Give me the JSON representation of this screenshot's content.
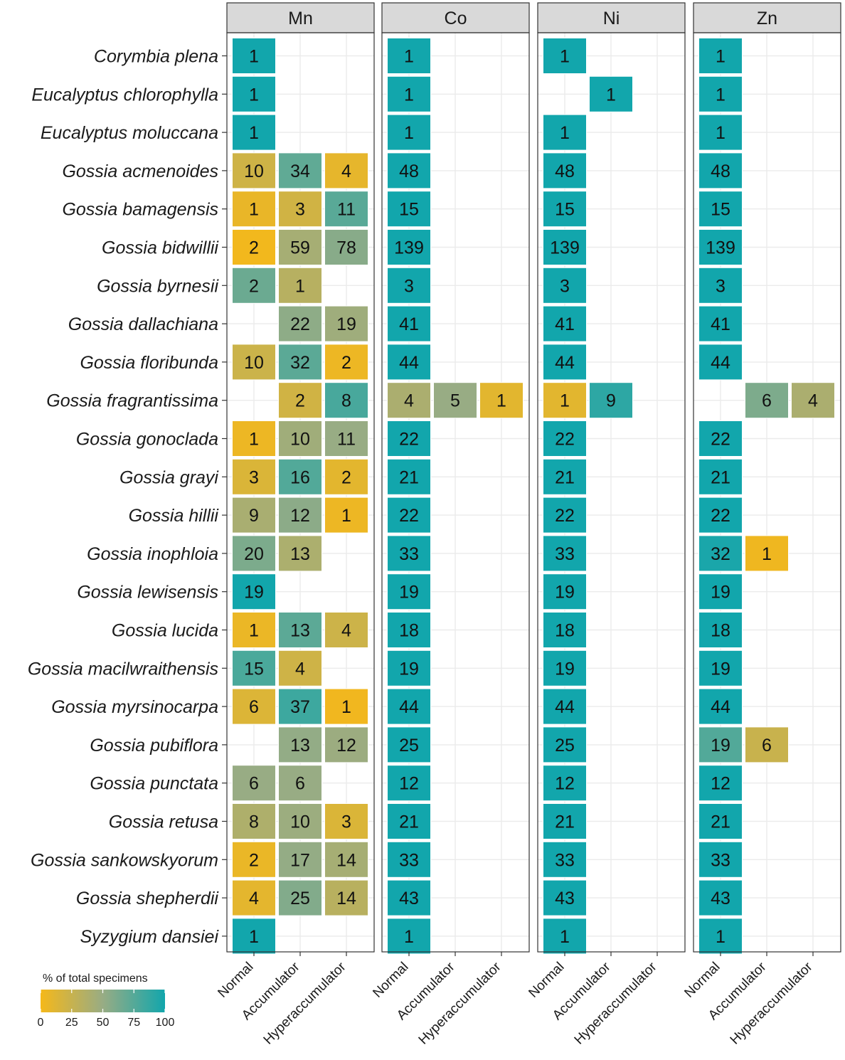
{
  "chart_data": {
    "type": "heatmap",
    "facets": [
      "Mn",
      "Co",
      "Ni",
      "Zn"
    ],
    "categories_x": [
      "Normal",
      "Accumulator",
      "Hyperaccumulator"
    ],
    "species": [
      "Corymbia plena",
      "Eucalyptus chlorophylla",
      "Eucalyptus moluccana",
      "Gossia acmenoides",
      "Gossia bamagensis",
      "Gossia bidwillii",
      "Gossia byrnesii",
      "Gossia dallachiana",
      "Gossia floribunda",
      "Gossia fragrantissima",
      "Gossia gonoclada",
      "Gossia grayi",
      "Gossia hillii",
      "Gossia inophloia",
      "Gossia lewisensis",
      "Gossia lucida",
      "Gossia macilwraithensis",
      "Gossia myrsinocarpa",
      "Gossia pubiflora",
      "Gossia punctata",
      "Gossia retusa",
      "Gossia sankowskyorum",
      "Gossia shepherdii",
      "Syzygium dansiei"
    ],
    "counts": {
      "Mn": [
        [
          1,
          null,
          null
        ],
        [
          1,
          null,
          null
        ],
        [
          1,
          null,
          null
        ],
        [
          10,
          34,
          4
        ],
        [
          1,
          3,
          11
        ],
        [
          2,
          59,
          78
        ],
        [
          2,
          1,
          null
        ],
        [
          null,
          22,
          19
        ],
        [
          10,
          32,
          2
        ],
        [
          null,
          2,
          8
        ],
        [
          1,
          10,
          11
        ],
        [
          3,
          16,
          2
        ],
        [
          9,
          12,
          1
        ],
        [
          20,
          13,
          null
        ],
        [
          19,
          null,
          null
        ],
        [
          1,
          13,
          4
        ],
        [
          15,
          4,
          null
        ],
        [
          6,
          37,
          1
        ],
        [
          null,
          13,
          12
        ],
        [
          6,
          6,
          null
        ],
        [
          8,
          10,
          3
        ],
        [
          2,
          17,
          14
        ],
        [
          4,
          25,
          14
        ],
        [
          1,
          null,
          null
        ]
      ],
      "Co": [
        [
          1,
          null,
          null
        ],
        [
          1,
          null,
          null
        ],
        [
          1,
          null,
          null
        ],
        [
          48,
          null,
          null
        ],
        [
          15,
          null,
          null
        ],
        [
          139,
          null,
          null
        ],
        [
          3,
          null,
          null
        ],
        [
          41,
          null,
          null
        ],
        [
          44,
          null,
          null
        ],
        [
          4,
          5,
          1
        ],
        [
          22,
          null,
          null
        ],
        [
          21,
          null,
          null
        ],
        [
          22,
          null,
          null
        ],
        [
          33,
          null,
          null
        ],
        [
          19,
          null,
          null
        ],
        [
          18,
          null,
          null
        ],
        [
          19,
          null,
          null
        ],
        [
          44,
          null,
          null
        ],
        [
          25,
          null,
          null
        ],
        [
          12,
          null,
          null
        ],
        [
          21,
          null,
          null
        ],
        [
          33,
          null,
          null
        ],
        [
          43,
          null,
          null
        ],
        [
          1,
          null,
          null
        ]
      ],
      "Ni": [
        [
          1,
          null,
          null
        ],
        [
          null,
          1,
          null
        ],
        [
          1,
          null,
          null
        ],
        [
          48,
          null,
          null
        ],
        [
          15,
          null,
          null
        ],
        [
          139,
          null,
          null
        ],
        [
          3,
          null,
          null
        ],
        [
          41,
          null,
          null
        ],
        [
          44,
          null,
          null
        ],
        [
          1,
          9,
          null
        ],
        [
          22,
          null,
          null
        ],
        [
          21,
          null,
          null
        ],
        [
          22,
          null,
          null
        ],
        [
          33,
          null,
          null
        ],
        [
          19,
          null,
          null
        ],
        [
          18,
          null,
          null
        ],
        [
          19,
          null,
          null
        ],
        [
          44,
          null,
          null
        ],
        [
          25,
          null,
          null
        ],
        [
          12,
          null,
          null
        ],
        [
          21,
          null,
          null
        ],
        [
          33,
          null,
          null
        ],
        [
          43,
          null,
          null
        ],
        [
          1,
          null,
          null
        ]
      ],
      "Zn": [
        [
          1,
          null,
          null
        ],
        [
          1,
          null,
          null
        ],
        [
          1,
          null,
          null
        ],
        [
          48,
          null,
          null
        ],
        [
          15,
          null,
          null
        ],
        [
          139,
          null,
          null
        ],
        [
          3,
          null,
          null
        ],
        [
          41,
          null,
          null
        ],
        [
          44,
          null,
          null
        ],
        [
          null,
          6,
          4
        ],
        [
          22,
          null,
          null
        ],
        [
          21,
          null,
          null
        ],
        [
          22,
          null,
          null
        ],
        [
          32,
          1,
          null
        ],
        [
          19,
          null,
          null
        ],
        [
          18,
          null,
          null
        ],
        [
          19,
          null,
          null
        ],
        [
          44,
          null,
          null
        ],
        [
          19,
          6,
          null
        ],
        [
          12,
          null,
          null
        ],
        [
          21,
          null,
          null
        ],
        [
          33,
          null,
          null
        ],
        [
          43,
          null,
          null
        ],
        [
          1,
          null,
          null
        ]
      ]
    },
    "color_value": "percent of total specimens per species within facet (row-wise count / row total × 100)",
    "legend": {
      "title": "% of  total specimens",
      "ticks": [
        0,
        25,
        50,
        75,
        100
      ],
      "range": [
        0,
        100
      ],
      "low_color": "#f5b81a",
      "high_color": "#12a6ac",
      "placement": "bottom-left"
    }
  }
}
